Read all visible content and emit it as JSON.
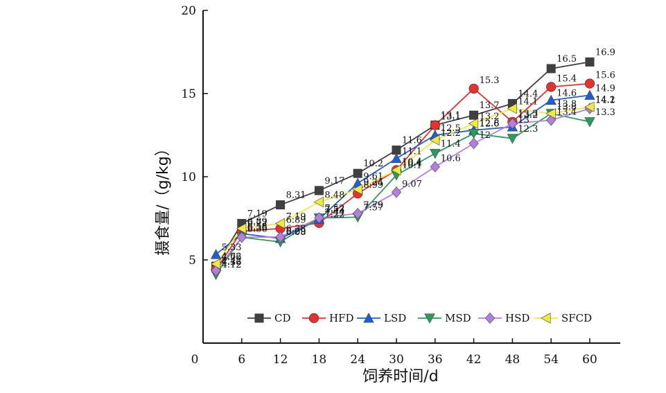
{
  "chart_data": {
    "type": "line",
    "title": "",
    "xlabel": "饲养时间/d",
    "ylabel": "摄食量/（g/kg）",
    "x": [
      2,
      6,
      12,
      18,
      24,
      30,
      36,
      42,
      48,
      54,
      60
    ],
    "x_ticks": [
      "0",
      "6",
      "12",
      "18",
      "24",
      "30",
      "36",
      "42",
      "48",
      "54",
      "60"
    ],
    "xlim": [
      0,
      66
    ],
    "y_ticks": [
      "5",
      "10",
      "15",
      "20"
    ],
    "ylim": [
      0,
      20
    ],
    "legend_position": "bottom-right inside plot",
    "series": [
      {
        "name": "CD",
        "color": "#404040",
        "marker": "square",
        "values": [
          4.62,
          7.19,
          8.31,
          9.17,
          10.2,
          11.6,
          13.1,
          13.7,
          14.4,
          16.5,
          16.9
        ],
        "labels": [
          "4.62",
          "7.19",
          "8.31",
          "9.17",
          "10.2",
          "11.6",
          "13.1",
          "13.7",
          "14.4",
          "16.5",
          "16.9"
        ]
      },
      {
        "name": "HFD",
        "color": "#e8312c",
        "marker": "circle",
        "values": [
          4.42,
          6.72,
          6.89,
          7.22,
          8.99,
          10.4,
          13.1,
          15.3,
          13.3,
          15.4,
          15.6
        ],
        "labels": [
          "4.42",
          "6.72",
          "6.89",
          "7.22",
          "8.99",
          "10.4",
          "13.1",
          "15.3",
          "13.3",
          "15.4",
          "15.6"
        ]
      },
      {
        "name": "LSD",
        "color": "#1f5fd6",
        "marker": "triangle-up",
        "values": [
          5.33,
          6.58,
          6.29,
          7.44,
          9.61,
          11.1,
          12.5,
          12.8,
          13,
          14.6,
          14.9
        ],
        "labels": [
          "5.33",
          "6.58",
          "6.29",
          "7.44",
          "9.61",
          "11.1",
          "12.5",
          "12.8",
          "13",
          "14.6",
          "14.9"
        ]
      },
      {
        "name": "MSD",
        "color": "#2a9c5a",
        "marker": "triangle-down",
        "values": [
          4.12,
          6.36,
          6.08,
          7.52,
          7.57,
          10.1,
          11.4,
          12.6,
          12.3,
          13.8,
          13.3
        ],
        "labels": [
          "4.12",
          "6.36",
          "6.08",
          "7.52",
          "7.57",
          "10.1",
          "11.4",
          "12.6",
          "12.3",
          "13.8",
          "13.3"
        ]
      },
      {
        "name": "HSD",
        "color": "#b27fe0",
        "marker": "diamond",
        "values": [
          4.36,
          6.36,
          6.38,
          7.53,
          7.79,
          9.07,
          10.6,
          12,
          13.2,
          13.4,
          14.1
        ],
        "labels": [
          "4.36",
          "6.36",
          "6.38",
          "7.53",
          "7.79",
          "9.07",
          "10.6",
          "12",
          "13.2",
          "13.4",
          "14.1"
        ]
      },
      {
        "name": "SFCD",
        "color": "#f0ea3c",
        "marker": "triangle-left",
        "values": [
          4.76,
          6.89,
          7.19,
          8.48,
          9.24,
          10.4,
          12.2,
          13.2,
          14.1,
          13.8,
          14.2
        ],
        "labels": [
          "4.76",
          "6.89",
          "7.19",
          "8.48",
          "9.24",
          "10.4",
          "12.2",
          "13.2",
          "14.1",
          "13.8",
          "14.2"
        ]
      }
    ]
  }
}
